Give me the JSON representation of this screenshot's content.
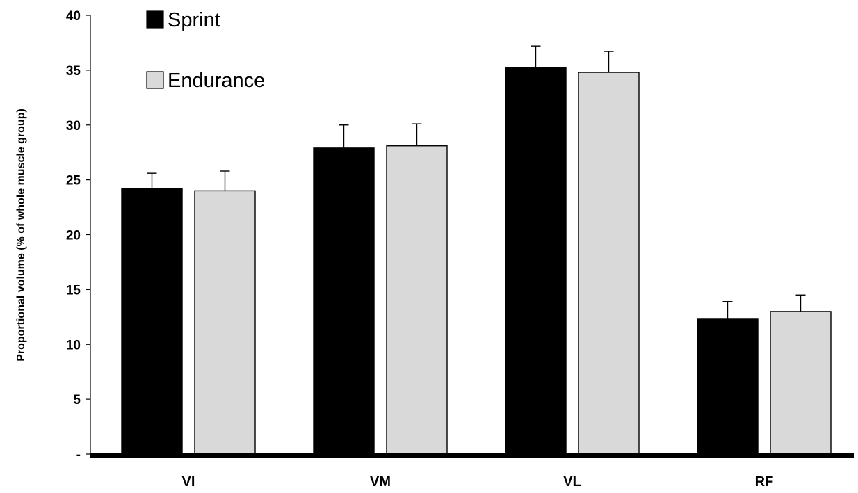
{
  "chart_data": {
    "type": "bar",
    "title": "",
    "xlabel": "",
    "ylabel": "Proportional volume (% of whole muscle group)",
    "categories": [
      "VI",
      "VM",
      "VL",
      "RF"
    ],
    "ylim": [
      0,
      40
    ],
    "yticks": [
      0,
      5,
      10,
      15,
      20,
      25,
      30,
      35,
      40
    ],
    "ytick_labels": [
      "-",
      "5",
      "10",
      "15",
      "20",
      "25",
      "30",
      "35",
      "40"
    ],
    "grid": false,
    "legend_position": "top-left",
    "series": [
      {
        "name": "Sprint",
        "color": "#000000",
        "values": [
          24.2,
          27.9,
          35.2,
          12.3
        ],
        "errors": [
          1.4,
          2.1,
          2.0,
          1.6
        ]
      },
      {
        "name": "Endurance",
        "color": "#d9d9d9",
        "values": [
          24.0,
          28.1,
          34.8,
          13.0
        ],
        "errors": [
          1.8,
          2.0,
          1.9,
          1.5
        ]
      }
    ]
  }
}
